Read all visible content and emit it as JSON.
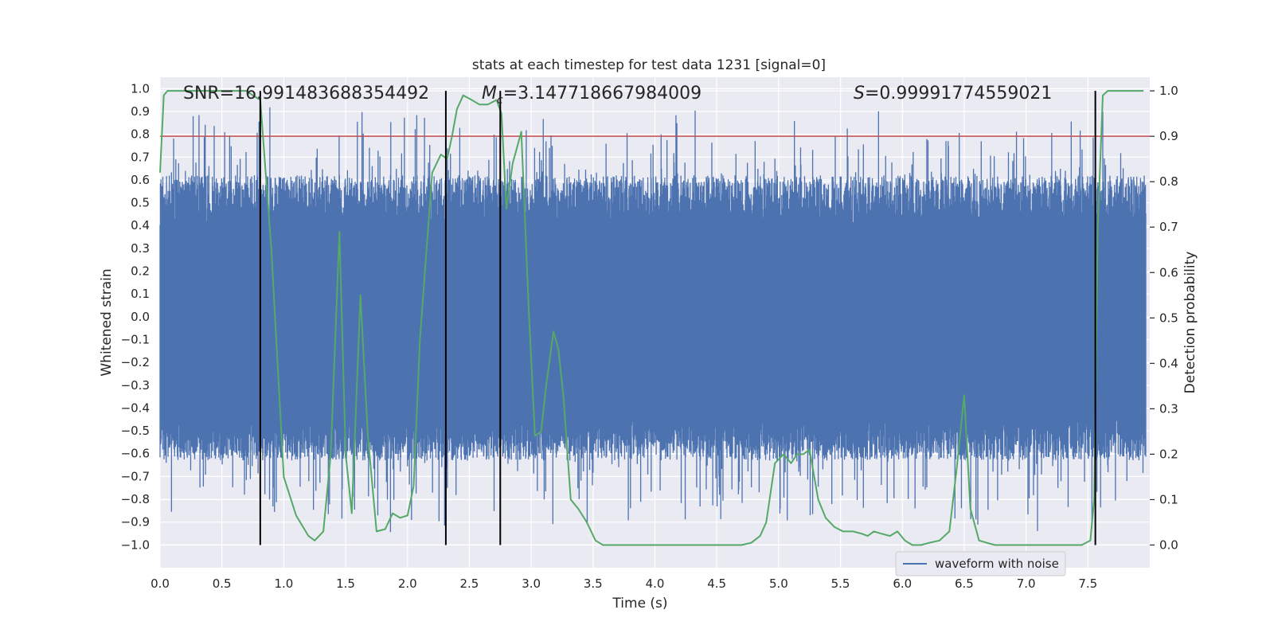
{
  "chart_data": {
    "type": "line",
    "title": "stats at each timestep for test data 1231 [signal=0]",
    "xlabel": "Time (s)",
    "ylabel_left": "Whitened strain",
    "ylabel_right": "Detection probability",
    "xlim": [
      0,
      8
    ],
    "ylim_left": [
      -1.1,
      1.05
    ],
    "ylim_right": [
      -0.05,
      1.03
    ],
    "xticks": [
      "0.0",
      "0.5",
      "1.0",
      "1.5",
      "2.0",
      "2.5",
      "3.0",
      "3.5",
      "4.0",
      "4.5",
      "5.0",
      "5.5",
      "6.0",
      "6.5",
      "7.0",
      "7.5"
    ],
    "yticks_left": [
      "-1.0",
      "-0.9",
      "-0.8",
      "-0.7",
      "-0.6",
      "-0.5",
      "-0.4",
      "-0.3",
      "-0.2",
      "-0.1",
      "0.0",
      "0.1",
      "0.2",
      "0.3",
      "0.4",
      "0.5",
      "0.6",
      "0.7",
      "0.8",
      "0.9",
      "1.0"
    ],
    "yticks_right": [
      "0.0",
      "0.1",
      "0.2",
      "0.3",
      "0.4",
      "0.5",
      "0.6",
      "0.7",
      "0.8",
      "0.9",
      "1.0"
    ],
    "annotations": {
      "snr": "SNR=16.991483688354492",
      "mc_symbol": "M",
      "mc_sub": "c",
      "mc_value": "=3.147718667984009",
      "s_symbol": "S",
      "s_value": "=0.99991774559021"
    },
    "threshold": 0.9,
    "vlines": [
      0.81,
      2.31,
      2.75,
      7.56
    ],
    "legend": {
      "label": "waveform with noise",
      "position": "lower-right"
    },
    "grid": true,
    "colors": {
      "waveform": "#4c72b0",
      "probability": "#55a868",
      "threshold": "#c44e52",
      "vlines": "#000000",
      "plot_bg": "#eaeaf2"
    },
    "series": [
      {
        "name": "waveform with noise",
        "axis": "left",
        "kind": "noise-envelope",
        "core_band": [
          -0.45,
          0.4
        ],
        "peak_range": [
          -1.0,
          0.95
        ]
      },
      {
        "axis": "right",
        "x": [
          0.0,
          0.03,
          0.06,
          0.12,
          0.2,
          0.3,
          0.4,
          0.5,
          0.6,
          0.7,
          0.75,
          0.81,
          0.9,
          1.0,
          1.1,
          1.2,
          1.25,
          1.32,
          1.38,
          1.45,
          1.5,
          1.55,
          1.62,
          1.68,
          1.75,
          1.82,
          1.88,
          1.94,
          2.0,
          2.05,
          2.1,
          2.2,
          2.27,
          2.32,
          2.36,
          2.4,
          2.45,
          2.52,
          2.58,
          2.65,
          2.72,
          2.76,
          2.8,
          2.85,
          2.88,
          2.92,
          2.98,
          3.03,
          3.08,
          3.12,
          3.18,
          3.22,
          3.26,
          3.32,
          3.38,
          3.45,
          3.52,
          3.58,
          3.65,
          3.75,
          3.9,
          4.1,
          4.3,
          4.5,
          4.7,
          4.78,
          4.85,
          4.9,
          4.97,
          5.04,
          5.1,
          5.15,
          5.2,
          5.25,
          5.32,
          5.38,
          5.45,
          5.52,
          5.6,
          5.67,
          5.72,
          5.77,
          5.83,
          5.9,
          5.96,
          6.02,
          6.08,
          6.15,
          6.22,
          6.3,
          6.38,
          6.44,
          6.5,
          6.55,
          6.62,
          6.68,
          6.75,
          6.85,
          6.95,
          7.1,
          7.3,
          7.45,
          7.52,
          7.55,
          7.58,
          7.62,
          7.66,
          7.72,
          7.8,
          7.95
        ],
        "values": [
          0.82,
          0.99,
          1.0,
          1.0,
          1.0,
          1.0,
          1.0,
          1.0,
          1.0,
          1.0,
          0.99,
          0.98,
          0.65,
          0.15,
          0.065,
          0.02,
          0.01,
          0.03,
          0.2,
          0.69,
          0.2,
          0.07,
          0.55,
          0.24,
          0.03,
          0.035,
          0.07,
          0.06,
          0.065,
          0.13,
          0.45,
          0.82,
          0.86,
          0.85,
          0.9,
          0.96,
          0.99,
          0.98,
          0.97,
          0.97,
          0.98,
          0.95,
          0.74,
          0.84,
          0.87,
          0.91,
          0.52,
          0.24,
          0.25,
          0.35,
          0.47,
          0.43,
          0.33,
          0.1,
          0.08,
          0.05,
          0.01,
          0.0,
          0.0,
          0.0,
          0.0,
          0.0,
          0.0,
          0.0,
          0.0,
          0.005,
          0.02,
          0.05,
          0.18,
          0.2,
          0.18,
          0.2,
          0.2,
          0.21,
          0.1,
          0.06,
          0.04,
          0.03,
          0.03,
          0.025,
          0.02,
          0.03,
          0.025,
          0.02,
          0.03,
          0.01,
          0.0,
          0.0,
          0.005,
          0.01,
          0.03,
          0.17,
          0.33,
          0.08,
          0.01,
          0.005,
          0.0,
          0.0,
          0.0,
          0.0,
          0.0,
          0.0,
          0.01,
          0.1,
          0.7,
          0.99,
          1.0,
          1.0,
          1.0,
          1.0
        ]
      }
    ]
  }
}
